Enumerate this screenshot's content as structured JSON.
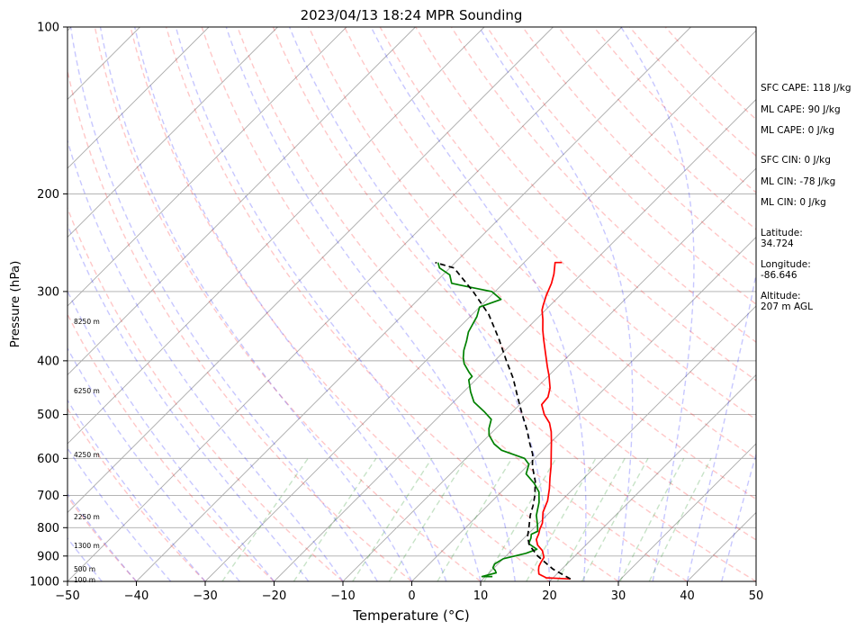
{
  "chart_data": {
    "type": "line",
    "title": "2023/04/13 18:24 MPR Sounding",
    "xlabel": "Temperature (°C)",
    "ylabel": "Pressure (hPa)",
    "xlim": [
      -50,
      50
    ],
    "ylim": [
      1000,
      100
    ],
    "y_scale": "log",
    "grid": true,
    "x_ticks": [
      -50,
      -40,
      -30,
      -20,
      -10,
      0,
      10,
      20,
      30,
      40,
      50
    ],
    "y_ticks": [
      100,
      200,
      300,
      400,
      500,
      600,
      700,
      800,
      900,
      1000
    ],
    "series": [
      {
        "color": "#ff0000",
        "points": [
          [
            22.7,
            990
          ],
          [
            19.0,
            985
          ],
          [
            17.4,
            970
          ],
          [
            16.8,
            955
          ],
          [
            16.3,
            940
          ],
          [
            16.0,
            925
          ],
          [
            15.7,
            905
          ],
          [
            14.5,
            880
          ],
          [
            13.0,
            860
          ],
          [
            12.0,
            840
          ],
          [
            11.5,
            820
          ],
          [
            11.0,
            805
          ],
          [
            10.5,
            785
          ],
          [
            9.0,
            750
          ],
          [
            8.0,
            715
          ],
          [
            6.5,
            680
          ],
          [
            5.0,
            650
          ],
          [
            3.5,
            620
          ],
          [
            1.5,
            585
          ],
          [
            0.0,
            560
          ],
          [
            -1.5,
            537
          ],
          [
            -3.0,
            518
          ],
          [
            -5.0,
            500
          ],
          [
            -6.8,
            480
          ],
          [
            -7.0,
            465
          ],
          [
            -8.0,
            448
          ],
          [
            -10.0,
            425
          ],
          [
            -11.5,
            410
          ],
          [
            -14.0,
            385
          ],
          [
            -16.0,
            366
          ],
          [
            -17.5,
            352
          ],
          [
            -19.0,
            337
          ],
          [
            -20.5,
            324
          ],
          [
            -21.0,
            318
          ],
          [
            -22.0,
            305
          ],
          [
            -23.0,
            290
          ],
          [
            -24.0,
            279
          ],
          [
            -25.5,
            266
          ],
          [
            -24.5,
            266
          ]
        ]
      },
      {
        "color": "#008000",
        "points": [
          [
            11.0,
            980
          ],
          [
            9.5,
            980
          ],
          [
            10.0,
            975
          ],
          [
            11.0,
            965
          ],
          [
            10.5,
            955
          ],
          [
            9.8,
            945
          ],
          [
            9.5,
            930
          ],
          [
            10.0,
            910
          ],
          [
            12.5,
            890
          ],
          [
            13.5,
            875
          ],
          [
            11.5,
            855
          ],
          [
            11.0,
            835
          ],
          [
            10.5,
            822
          ],
          [
            11.0,
            812
          ],
          [
            10.0,
            790
          ],
          [
            8.5,
            760
          ],
          [
            7.0,
            720
          ],
          [
            5.5,
            690
          ],
          [
            3.5,
            665
          ],
          [
            1.0,
            640
          ],
          [
            0.0,
            615
          ],
          [
            -1.5,
            600
          ],
          [
            -6.0,
            580
          ],
          [
            -8.0,
            565
          ],
          [
            -10.0,
            545
          ],
          [
            -11.0,
            530
          ],
          [
            -11.5,
            520
          ],
          [
            -12.0,
            510
          ],
          [
            -14.0,
            495
          ],
          [
            -17.0,
            475
          ],
          [
            -19.0,
            455
          ],
          [
            -21.0,
            433
          ],
          [
            -21.0,
            427
          ],
          [
            -22.0,
            420
          ],
          [
            -24.0,
            405
          ],
          [
            -25.0,
            395
          ],
          [
            -26.0,
            383
          ],
          [
            -27.0,
            368
          ],
          [
            -28.0,
            355
          ],
          [
            -28.5,
            344
          ],
          [
            -29.0,
            333
          ],
          [
            -30.0,
            320
          ],
          [
            -28.0,
            310
          ],
          [
            -30.5,
            300
          ],
          [
            -34.0,
            295
          ],
          [
            -37.5,
            290
          ],
          [
            -39.0,
            280
          ],
          [
            -41.5,
            272
          ],
          [
            -42.5,
            266
          ]
        ]
      },
      {
        "color": "#000000",
        "dash": "6,4",
        "points": [
          [
            22.7,
            990
          ],
          [
            18.7,
            950
          ],
          [
            14.6,
            900
          ],
          [
            11.8,
            860
          ],
          [
            10.3,
            830
          ],
          [
            9.2,
            800
          ],
          [
            7.6,
            760
          ],
          [
            6.6,
            730
          ],
          [
            5.4,
            700
          ],
          [
            3.4,
            660
          ],
          [
            0.8,
            620
          ],
          [
            -0.9,
            590
          ],
          [
            -3.2,
            560
          ],
          [
            -5.1,
            535
          ],
          [
            -8.2,
            500
          ],
          [
            -11.4,
            465
          ],
          [
            -14.8,
            430
          ],
          [
            -18.3,
            400
          ],
          [
            -22.6,
            365
          ],
          [
            -27.6,
            330
          ],
          [
            -33.2,
            300
          ],
          [
            -39.4,
            272
          ],
          [
            -42.9,
            266
          ]
        ]
      }
    ]
  },
  "height_labels": [
    "100 m",
    "500 m",
    "1300 m",
    "2250 m",
    "4250 m",
    "6250 m",
    "8250 m"
  ],
  "side_panel": {
    "sfc_cape": "SFC CAPE: 118 J/kg",
    "ml_cape": "ML CAPE: 90 J/kg",
    "ml_cape_2": "ML CAPE: 0 J/kg",
    "sfc_cin": "SFC CIN: 0 J/kg",
    "ml_cin": "ML CIN: -78 J/kg",
    "ml_cin_2": "ML CIN: 0 J/kg",
    "latitude": "Latitude:\n34.724",
    "longitude": "Longitude:\n-86.646",
    "altitude": "Altitude:\n207 m AGL"
  }
}
